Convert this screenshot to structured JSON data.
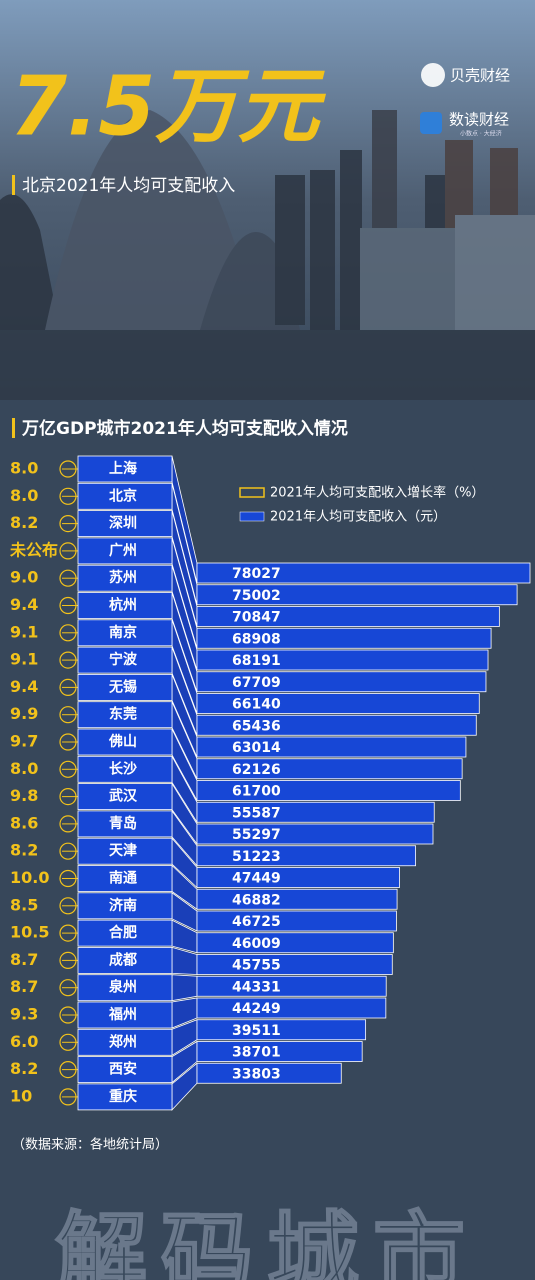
{
  "brand": {
    "logo1": "贝壳财经",
    "logo2": "数读财经",
    "logo2_sub": "小数点 · 大经济"
  },
  "chart_data": {
    "type": "bar",
    "title": "7.5万元",
    "subtitle": "北京2021年人均可支配收入",
    "chart_title": "万亿GDP城市2021年人均可支配收入情况",
    "categories": [
      "上海",
      "北京",
      "深圳",
      "广州",
      "苏州",
      "杭州",
      "南京",
      "宁波",
      "无锡",
      "东莞",
      "佛山",
      "长沙",
      "武汉",
      "青岛",
      "天津",
      "南通",
      "济南",
      "合肥",
      "成都",
      "泉州",
      "福州",
      "郑州",
      "西安",
      "重庆"
    ],
    "series": [
      {
        "name": "2021年人均可支配收入增长率（%）",
        "color": "#f2c21b",
        "values": [
          8,
          8,
          8.2,
          null,
          9,
          9.4,
          9.1,
          9.1,
          9.4,
          9.9,
          9.7,
          8,
          9.8,
          8.6,
          8.2,
          10,
          8.5,
          10.5,
          8.7,
          8.7,
          9.3,
          6,
          8.2,
          10
        ],
        "value_labels": [
          "8.0",
          "8.0",
          "8.2",
          "未公布",
          "9.0",
          "9.4",
          "9.1",
          "9.1",
          "9.4",
          "9.9",
          "9.7",
          "8.0",
          "9.8",
          "8.6",
          "8.2",
          "10.0",
          "8.5",
          "10.5",
          "8.7",
          "8.7",
          "9.3",
          "6.0",
          "8.2",
          "10"
        ]
      },
      {
        "name": "2021年人均可支配收入（元）",
        "color": "#1747d6",
        "values": [
          78027,
          75002,
          70847,
          68908,
          68191,
          67709,
          66140,
          65436,
          63014,
          62126,
          61700,
          55587,
          55297,
          51223,
          47449,
          46882,
          46725,
          46009,
          45755,
          44331,
          44249,
          39511,
          38701,
          33803
        ]
      }
    ],
    "source": "（数据来源：各地统计局）",
    "watermark": "解码城市"
  }
}
